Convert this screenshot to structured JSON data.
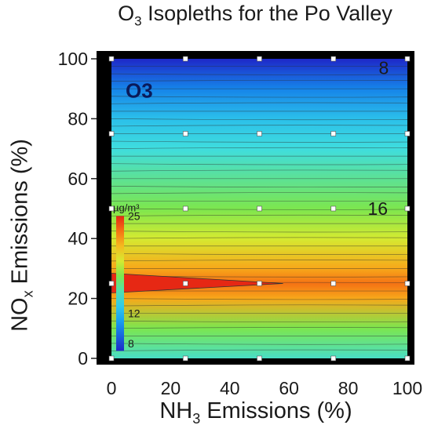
{
  "chart_data": {
    "type": "heatmap",
    "title_main": "O",
    "title_sub": "3",
    "title_rest": " Isopleths for the Po Valley",
    "ylabel_main": "NO",
    "ylabel_sub": "x",
    "ylabel_rest": " Emissions (%)",
    "xlabel_main": "NH",
    "xlabel_sub": "3",
    "xlabel_rest": " Emissions (%)",
    "x_ticks": [
      "0",
      "20",
      "40",
      "60",
      "80",
      "100"
    ],
    "x_tick_values": [
      0,
      20,
      40,
      60,
      80,
      100
    ],
    "y_ticks": [
      "0",
      "20",
      "40",
      "60",
      "80",
      "100"
    ],
    "y_tick_values": [
      0,
      20,
      40,
      60,
      80,
      100
    ],
    "xlim": [
      0,
      100
    ],
    "ylim": [
      0,
      100
    ],
    "sample_points_x": [
      0,
      25,
      50,
      75,
      100
    ],
    "sample_points_y": [
      0,
      25,
      50,
      75,
      100
    ],
    "panel_label": "O3",
    "contour_labels": [
      {
        "text": "8",
        "x": 92,
        "y": 97
      },
      {
        "text": "16",
        "x": 90,
        "y": 50
      }
    ],
    "colorbar": {
      "unit": "µg/m³",
      "labels": [
        {
          "text": "25",
          "value": 25
        },
        {
          "text": "12",
          "value": 12
        },
        {
          "text": "8",
          "value": 8
        }
      ]
    },
    "profile": [
      {
        "y": 0,
        "value": 14.5
      },
      {
        "y": 10,
        "value": 17
      },
      {
        "y": 20,
        "value": 21.5
      },
      {
        "y": 25,
        "value": 23
      },
      {
        "y": 30,
        "value": 21.5
      },
      {
        "y": 40,
        "value": 19
      },
      {
        "y": 50,
        "value": 17
      },
      {
        "y": 60,
        "value": 15.5
      },
      {
        "y": 70,
        "value": 14
      },
      {
        "y": 80,
        "value": 12.5
      },
      {
        "y": 90,
        "value": 10
      },
      {
        "y": 100,
        "value": 7
      }
    ],
    "colors": {
      "frame": "#000000",
      "sample_point": "#ffffff",
      "contour_line": "#2b2b2b"
    }
  }
}
